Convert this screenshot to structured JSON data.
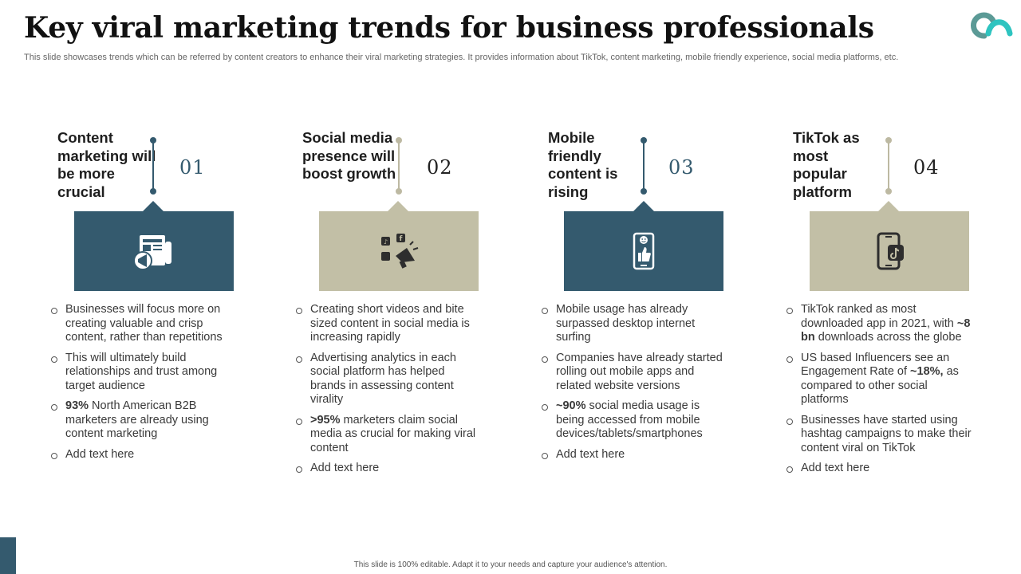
{
  "title": "Key viral marketing trends for business professionals",
  "subtitle": "This slide showcases trends which can be referred by content creators to enhance their viral marketing strategies. It provides information about TikTok, content marketing, mobile friendly experience, social media platforms, etc.",
  "colors": {
    "dark": "#345a6e",
    "light": "#c2bfa6",
    "dark_stem": "#345a6e",
    "light_stem": "#bdb9a2"
  },
  "columns": [
    {
      "heading": "Content marketing will be more crucial",
      "number": "01",
      "icon": "newspaper-megaphone-icon",
      "bullets": [
        {
          "bold": "",
          "text": "Businesses will focus more on creating valuable and crisp content, rather than repetitions"
        },
        {
          "bold": "",
          "text": "This will ultimately build relationships and trust among target audience"
        },
        {
          "bold": "93%",
          "text": " North American B2B marketers are already using content marketing"
        },
        {
          "bold": "",
          "text": "Add text here"
        }
      ]
    },
    {
      "heading": "Social media presence will boost growth",
      "number": "02",
      "icon": "social-media-megaphone-icon",
      "bullets": [
        {
          "bold": "",
          "text": "Creating short videos and bite sized content in social media is increasing rapidly"
        },
        {
          "bold": "",
          "text": "Advertising analytics in each social platform has helped brands in assessing content virality"
        },
        {
          "bold": ">95%",
          "text": " marketers claim social media as crucial for making viral content"
        },
        {
          "bold": "",
          "text": "Add text here"
        }
      ]
    },
    {
      "heading": "Mobile friendly content is rising",
      "number": "03",
      "icon": "smartphone-like-icon",
      "bullets": [
        {
          "bold": "",
          "text": "Mobile usage has already surpassed desktop internet surfing"
        },
        {
          "bold": "",
          "text": "Companies have already started rolling out mobile apps and related website versions"
        },
        {
          "bold": "~90%",
          "text": " social media usage is being accessed from mobile devices/tablets/smartphones"
        },
        {
          "bold": "",
          "text": "Add text here"
        }
      ]
    },
    {
      "heading": "TikTok as most popular platform",
      "number": "04",
      "icon": "tiktok-phone-icon",
      "bullets": [
        {
          "pre": "TikTok ranked as most downloaded app in 2021, with ",
          "bold": "~8 bn",
          "text": " downloads across the globe"
        },
        {
          "pre": "US based Influencers see an Engagement Rate of ",
          "bold": "~18%,",
          "text": " as compared to other social platforms"
        },
        {
          "bold": "",
          "text": "Businesses have started using hashtag campaigns to make their content viral on TikTok"
        },
        {
          "bold": "",
          "text": "Add text here"
        }
      ]
    }
  ],
  "footer": "This slide is 100% editable.  Adapt it to your needs and capture your audience's attention."
}
